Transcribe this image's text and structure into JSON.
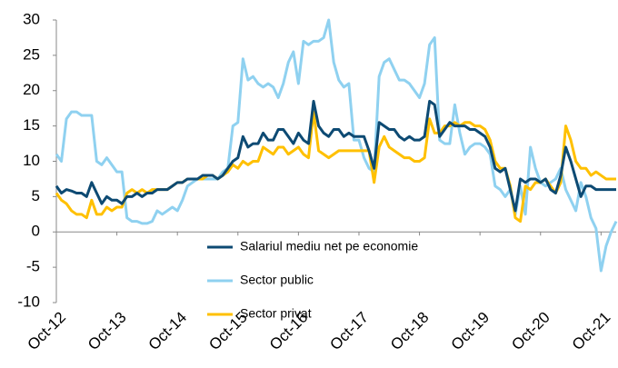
{
  "chart_data": {
    "type": "line",
    "categories": [
      "Oct-12",
      null,
      null,
      null,
      null,
      null,
      null,
      null,
      null,
      null,
      null,
      null,
      "Oct-13",
      null,
      null,
      null,
      null,
      null,
      null,
      null,
      null,
      null,
      null,
      null,
      "Oct-14",
      null,
      null,
      null,
      null,
      null,
      null,
      null,
      null,
      null,
      null,
      null,
      "Oct-15",
      null,
      null,
      null,
      null,
      null,
      null,
      null,
      null,
      null,
      null,
      null,
      "Oct-16",
      null,
      null,
      null,
      null,
      null,
      null,
      null,
      null,
      null,
      null,
      null,
      "Oct-17",
      null,
      null,
      null,
      null,
      null,
      null,
      null,
      null,
      null,
      null,
      null,
      "Oct-18",
      null,
      null,
      null,
      null,
      null,
      null,
      null,
      null,
      null,
      null,
      null,
      "Oct-19",
      null,
      null,
      null,
      null,
      null,
      null,
      null,
      null,
      null,
      null,
      null,
      "Oct-20",
      null,
      null,
      null,
      null,
      null,
      null,
      null,
      null,
      null,
      null,
      null,
      "Oct-21",
      null,
      null,
      null
    ],
    "series": [
      {
        "name": "Salariul mediu net pe economie",
        "color": "#0d4a73",
        "values": [
          6.5,
          5.5,
          6,
          5.8,
          5.5,
          5.5,
          5,
          7,
          5.5,
          4,
          5,
          4.5,
          4.5,
          4,
          5,
          5,
          5.5,
          5,
          5.5,
          5.5,
          6,
          6,
          6,
          6.5,
          7,
          7,
          7.5,
          7.5,
          7.5,
          8,
          8,
          8,
          7.5,
          8,
          9,
          10,
          10.5,
          13.5,
          12,
          12.5,
          12.5,
          14,
          13,
          13,
          14.5,
          14.5,
          13.5,
          12.5,
          14,
          13,
          12.5,
          18.5,
          15,
          14,
          13.5,
          14.5,
          14.5,
          13.5,
          14,
          13.5,
          13.5,
          13.5,
          11.5,
          9,
          15.5,
          15,
          14.5,
          14.5,
          13.5,
          13,
          13.5,
          13,
          13,
          13.5,
          18.5,
          18,
          13.5,
          14.5,
          15.5,
          15,
          15,
          15,
          14.5,
          14.5,
          14,
          13.5,
          12,
          9,
          8.5,
          9,
          6,
          3,
          7.5,
          7,
          7.5,
          7.5,
          7,
          7.5,
          6,
          5.5,
          8,
          12,
          10,
          7.5,
          5,
          6.5,
          6.5,
          6,
          6,
          6,
          6,
          6
        ]
      },
      {
        "name": "Sector public",
        "color": "#8fd1f0",
        "values": [
          11,
          10,
          16,
          17,
          17,
          16.5,
          16.5,
          16.5,
          10,
          9.5,
          10.5,
          9.5,
          8.5,
          8.5,
          2,
          1.5,
          1.5,
          1.2,
          1.2,
          1.5,
          3,
          2.5,
          3,
          3.5,
          3,
          4.5,
          6.5,
          7,
          7.5,
          7.5,
          7.5,
          7.5,
          7.5,
          8.5,
          9,
          15,
          15.5,
          24.5,
          21.5,
          22,
          21,
          20.5,
          21,
          20.5,
          19,
          21,
          24,
          25.5,
          21,
          27,
          26.5,
          27,
          27,
          27.5,
          30,
          24,
          21.5,
          20.5,
          21,
          13,
          13,
          10.5,
          9,
          8.5,
          22,
          24,
          24.5,
          23,
          21.5,
          21.5,
          21,
          20,
          19,
          21,
          26.5,
          27.5,
          13,
          12.5,
          12.5,
          18,
          14,
          11,
          12,
          12.5,
          12.5,
          12,
          11,
          6.5,
          6,
          5,
          6,
          2.5,
          6.5,
          2.5,
          12,
          9,
          7,
          6.5,
          7,
          7.5,
          9,
          6,
          4.5,
          3,
          7,
          5,
          2,
          0.5,
          -5.5,
          -2,
          0,
          1.5
        ]
      },
      {
        "name": "Sector privat",
        "color": "#ffc000",
        "values": [
          5.5,
          4.5,
          4,
          3,
          2.5,
          2.5,
          2,
          4.5,
          2.5,
          2.5,
          3.5,
          3,
          3.5,
          3.5,
          5.5,
          6,
          5.5,
          6,
          5.5,
          6,
          6,
          6,
          6,
          6.5,
          7,
          7,
          7.5,
          7.5,
          7.5,
          7.5,
          8,
          8,
          7.5,
          8,
          8.5,
          9.5,
          9,
          10,
          9.5,
          10,
          10,
          12,
          11.5,
          11,
          12,
          12,
          11,
          11.5,
          12,
          11,
          10.5,
          17,
          11.5,
          11,
          10.5,
          11,
          11.5,
          11.5,
          11.5,
          11.5,
          11.5,
          11.5,
          11.5,
          7,
          12,
          13.5,
          12,
          11.5,
          11,
          10.5,
          10.5,
          10,
          10,
          10.5,
          16,
          14,
          14,
          15,
          15,
          15.5,
          15,
          15.5,
          15.5,
          15,
          15,
          14.5,
          13,
          10,
          9,
          9,
          6.5,
          2,
          1.5,
          6.5,
          6,
          7,
          7,
          7.5,
          6.5,
          5.5,
          7,
          15,
          13,
          10,
          9,
          9,
          8,
          8.5,
          8,
          7.5,
          7.5,
          7.5
        ]
      }
    ],
    "ylim": [
      -10,
      30
    ],
    "yticks": [
      -10,
      -5,
      0,
      5,
      10,
      15,
      20,
      25,
      30
    ],
    "grid": false,
    "legend": "lower center"
  }
}
